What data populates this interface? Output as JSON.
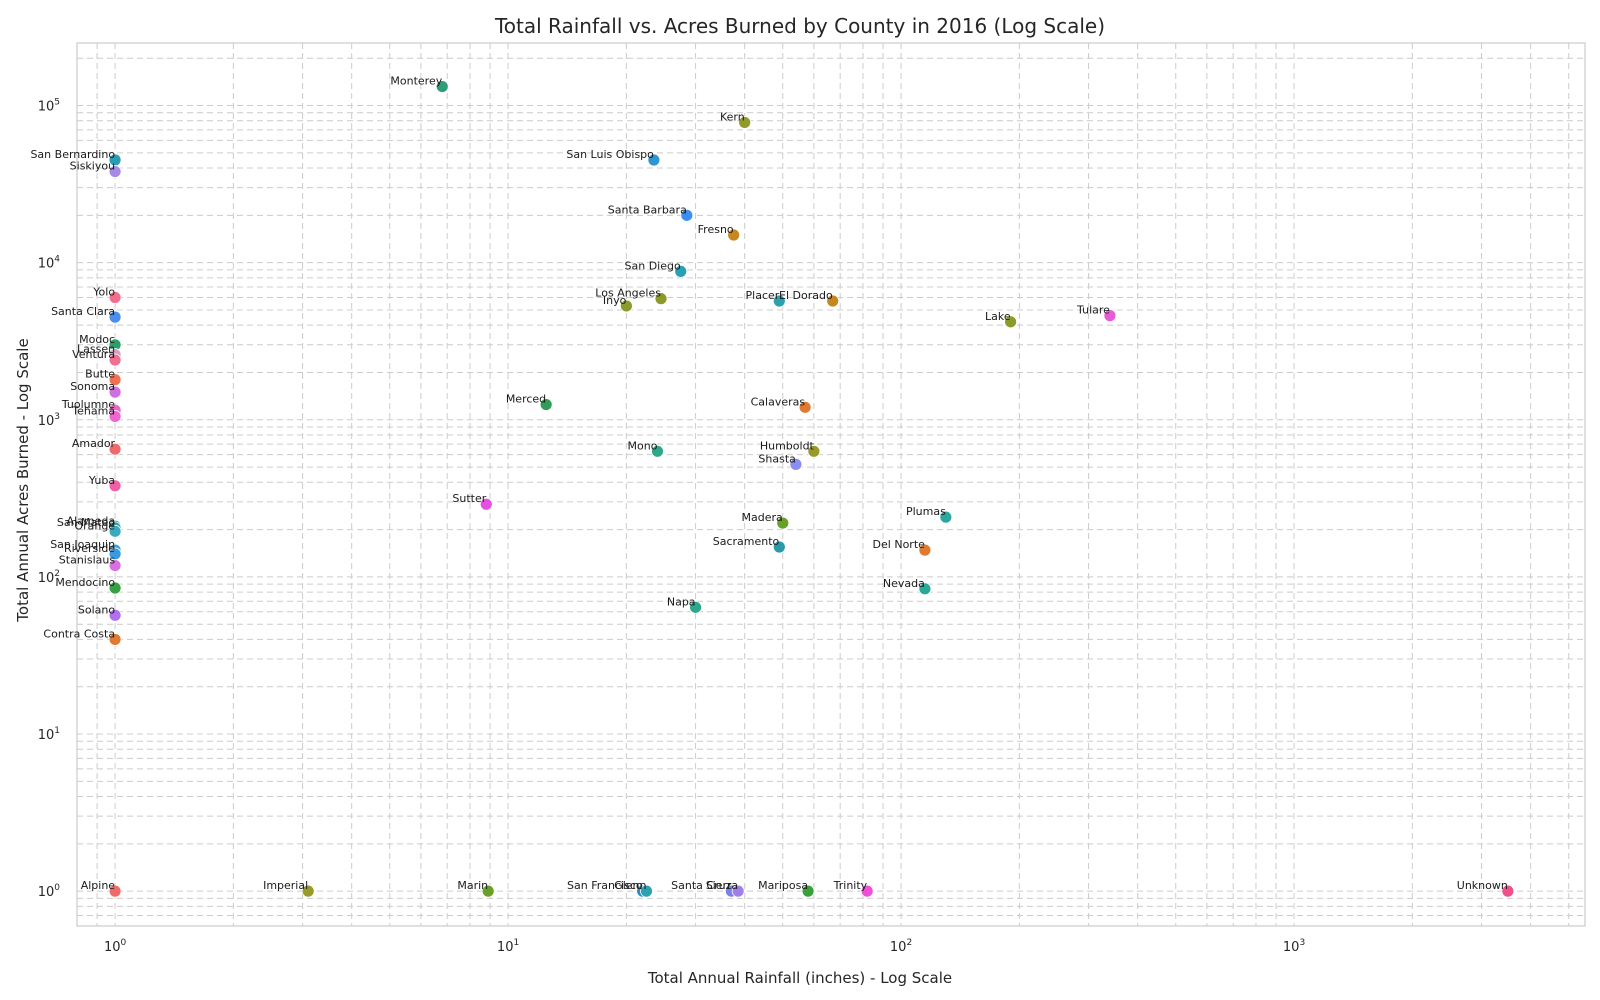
{
  "chart_data": {
    "type": "scatter",
    "title": "Total Rainfall vs. Acres Burned by County in 2016 (Log Scale)",
    "xlabel": "Total Annual Rainfall (inches) - Log Scale",
    "ylabel": "Total Annual Acres Burned - Log Scale",
    "xscale": "log",
    "yscale": "log",
    "xlim": [
      0.8,
      5500
    ],
    "ylim": [
      0.6,
      250000
    ],
    "grid": true,
    "x_ticks": [
      {
        "value": 1,
        "label": "10",
        "exp": "0"
      },
      {
        "value": 10,
        "label": "10",
        "exp": "1"
      },
      {
        "value": 100,
        "label": "10",
        "exp": "2"
      },
      {
        "value": 1000,
        "label": "10",
        "exp": "3"
      }
    ],
    "y_ticks": [
      {
        "value": 1,
        "label": "10",
        "exp": "0"
      },
      {
        "value": 10,
        "label": "10",
        "exp": "1"
      },
      {
        "value": 100,
        "label": "10",
        "exp": "2"
      },
      {
        "value": 1000,
        "label": "10",
        "exp": "3"
      },
      {
        "value": 10000,
        "label": "10",
        "exp": "4"
      },
      {
        "value": 100000,
        "label": "10",
        "exp": "5"
      }
    ],
    "points": [
      {
        "name": "Monterey",
        "x": 6.8,
        "y": 132000,
        "color": "#2e9e78"
      },
      {
        "name": "Kern",
        "x": 40,
        "y": 78000,
        "color": "#8f9a2a"
      },
      {
        "name": "San Luis Obispo",
        "x": 23.5,
        "y": 45000,
        "color": "#2f96d0"
      },
      {
        "name": "San Bernardino",
        "x": 1,
        "y": 45000,
        "color": "#2a9db0"
      },
      {
        "name": "Siskiyou",
        "x": 1,
        "y": 38000,
        "color": "#a78ae8"
      },
      {
        "name": "Santa Barbara",
        "x": 28.5,
        "y": 20000,
        "color": "#3c8ef0"
      },
      {
        "name": "Fresno",
        "x": 37.5,
        "y": 15000,
        "color": "#c6871f"
      },
      {
        "name": "San Diego",
        "x": 27.5,
        "y": 8800,
        "color": "#2aa0b4"
      },
      {
        "name": "Yolo",
        "x": 1,
        "y": 6000,
        "color": "#f0708a"
      },
      {
        "name": "Los Angeles",
        "x": 24.5,
        "y": 5900,
        "color": "#8b9a2a"
      },
      {
        "name": "Inyo",
        "x": 20,
        "y": 5300,
        "color": "#8b9a2a"
      },
      {
        "name": "Placer",
        "x": 49,
        "y": 5700,
        "color": "#2aa2b0"
      },
      {
        "name": "El Dorado",
        "x": 67,
        "y": 5700,
        "color": "#c6871f"
      },
      {
        "name": "Lake",
        "x": 190,
        "y": 4200,
        "color": "#8b9a2a"
      },
      {
        "name": "Tulare",
        "x": 340,
        "y": 4600,
        "color": "#e85ad8"
      },
      {
        "name": "Santa Clara",
        "x": 1,
        "y": 4500,
        "color": "#4a8ff0"
      },
      {
        "name": "Modoc",
        "x": 1,
        "y": 3000,
        "color": "#2e9e68"
      },
      {
        "name": "Lassen",
        "x": 1,
        "y": 2600,
        "color": "#d8a0c8"
      },
      {
        "name": "Ventura",
        "x": 1,
        "y": 2400,
        "color": "#f07090"
      },
      {
        "name": "Butte",
        "x": 1,
        "y": 1800,
        "color": "#f07050"
      },
      {
        "name": "Sonoma",
        "x": 1,
        "y": 1500,
        "color": "#d070e0"
      },
      {
        "name": "Merced",
        "x": 12.5,
        "y": 1250,
        "color": "#2e9e58"
      },
      {
        "name": "Calaveras",
        "x": 57,
        "y": 1200,
        "color": "#e07a30"
      },
      {
        "name": "Tuolumne",
        "x": 1,
        "y": 1150,
        "color": "#e868c8"
      },
      {
        "name": "Tehama",
        "x": 1,
        "y": 1050,
        "color": "#ee66d0"
      },
      {
        "name": "Amador",
        "x": 1,
        "y": 650,
        "color": "#f06a6a"
      },
      {
        "name": "Mono",
        "x": 24,
        "y": 630,
        "color": "#2ea88a"
      },
      {
        "name": "Humboldt",
        "x": 60,
        "y": 630,
        "color": "#9a9a2a"
      },
      {
        "name": "Shasta",
        "x": 54,
        "y": 520,
        "color": "#8a8ef0"
      },
      {
        "name": "Yuba",
        "x": 1,
        "y": 380,
        "color": "#f060a8"
      },
      {
        "name": "Sutter",
        "x": 8.8,
        "y": 290,
        "color": "#e650e0"
      },
      {
        "name": "Plumas",
        "x": 130,
        "y": 240,
        "color": "#2aa8a0"
      },
      {
        "name": "Madera",
        "x": 50,
        "y": 220,
        "color": "#6aa02a"
      },
      {
        "name": "Alameda",
        "x": 1,
        "y": 210,
        "color": "#2a9aa8"
      },
      {
        "name": "San Mateo",
        "x": 1,
        "y": 205,
        "color": "#30a0a0"
      },
      {
        "name": "Orange",
        "x": 1,
        "y": 195,
        "color": "#38aac0"
      },
      {
        "name": "Sacramento",
        "x": 49,
        "y": 155,
        "color": "#2a9aa8"
      },
      {
        "name": "Del Norte",
        "x": 115,
        "y": 148,
        "color": "#e07a30"
      },
      {
        "name": "San Joaquin",
        "x": 1,
        "y": 148,
        "color": "#3aa0d0"
      },
      {
        "name": "Riverside",
        "x": 1,
        "y": 140,
        "color": "#3a9ae0"
      },
      {
        "name": "Stanislaus",
        "x": 1,
        "y": 118,
        "color": "#d870e0"
      },
      {
        "name": "Mendocino",
        "x": 1,
        "y": 85,
        "color": "#3aa048"
      },
      {
        "name": "Nevada",
        "x": 115,
        "y": 84,
        "color": "#2aa898"
      },
      {
        "name": "Napa",
        "x": 30,
        "y": 64,
        "color": "#2ea88a"
      },
      {
        "name": "Solano",
        "x": 1,
        "y": 57,
        "color": "#b070f0"
      },
      {
        "name": "Contra Costa",
        "x": 1,
        "y": 40,
        "color": "#e07a30"
      },
      {
        "name": "Alpine",
        "x": 1,
        "y": 1,
        "color": "#f06a6a"
      },
      {
        "name": "Imperial",
        "x": 3.1,
        "y": 1,
        "color": "#9a9a2a"
      },
      {
        "name": "Marin",
        "x": 8.9,
        "y": 1,
        "color": "#6aa02a"
      },
      {
        "name": "San Francisco",
        "x": 22,
        "y": 1,
        "color": "#2a8ad0"
      },
      {
        "name": "Glenn",
        "x": 22.5,
        "y": 1,
        "color": "#2ea0b0"
      },
      {
        "name": "Santa Cruz",
        "x": 37,
        "y": 1,
        "color": "#7a80f0"
      },
      {
        "name": "Sierra",
        "x": 38.5,
        "y": 1,
        "color": "#a080e8"
      },
      {
        "name": "Mariposa",
        "x": 58,
        "y": 1,
        "color": "#3aa038"
      },
      {
        "name": "Trinity",
        "x": 82,
        "y": 1,
        "color": "#f050d8"
      },
      {
        "name": "Unknown",
        "x": 3500,
        "y": 1,
        "color": "#f0508a"
      }
    ]
  }
}
